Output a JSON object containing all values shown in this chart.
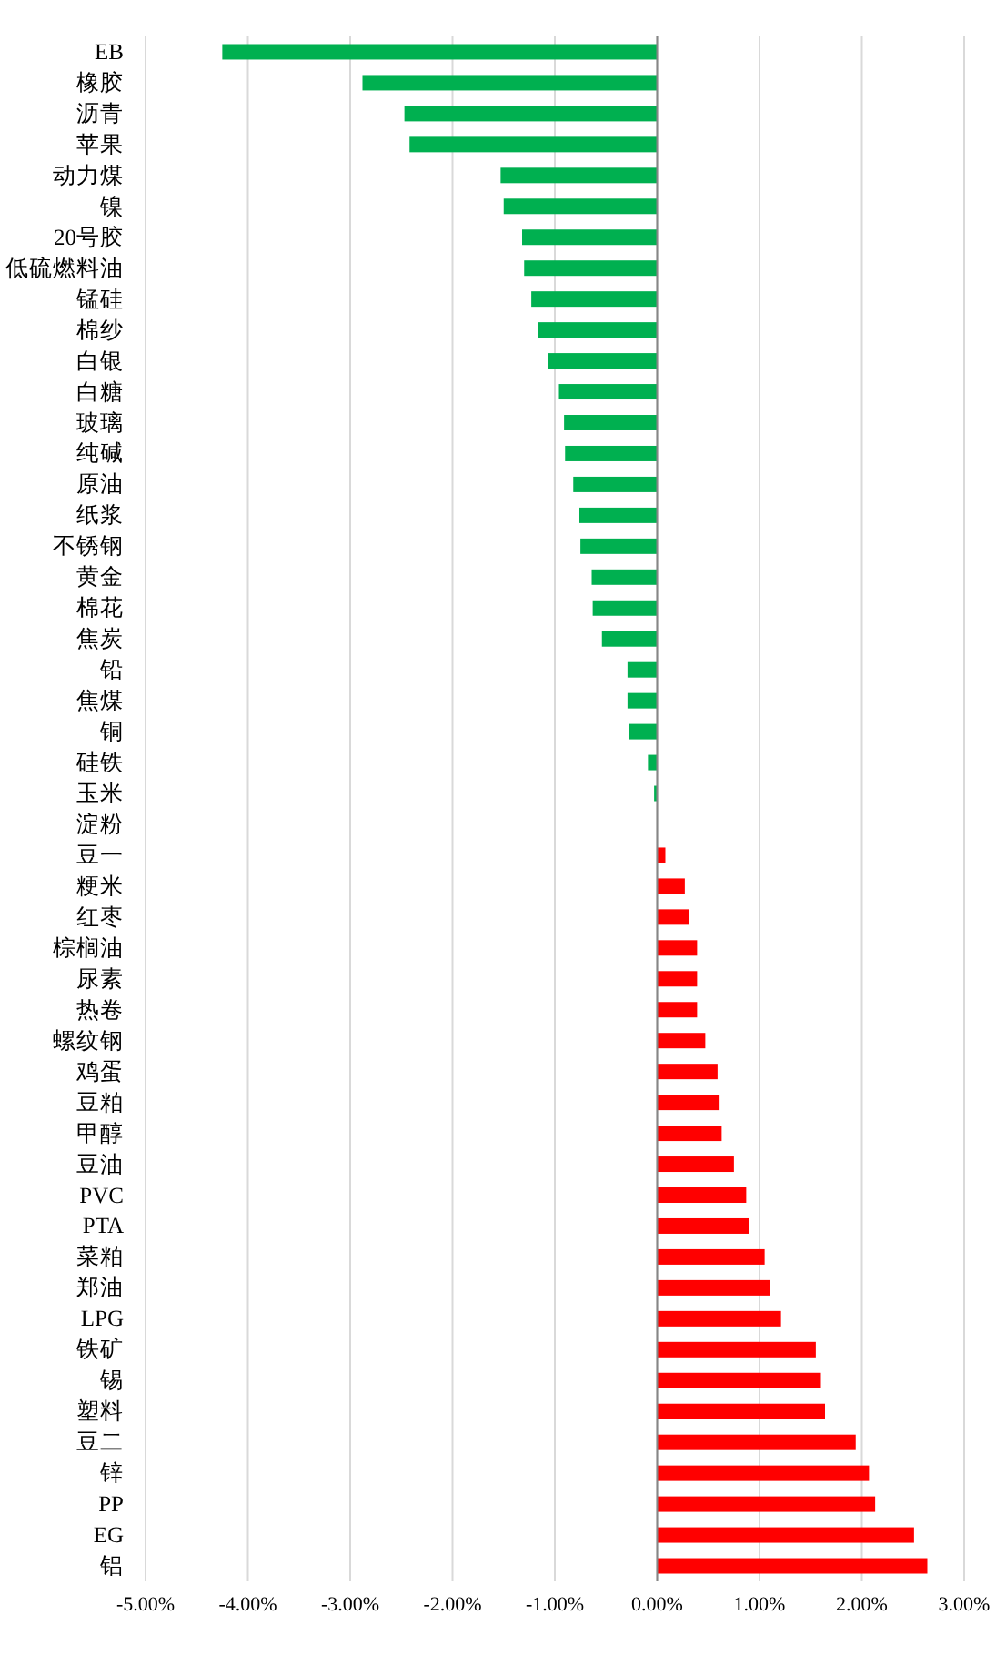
{
  "chart_data": {
    "type": "bar",
    "orientation": "horizontal",
    "categories": [
      "EB",
      "橡胶",
      "沥青",
      "苹果",
      "动力煤",
      "镍",
      "20号胶",
      "低硫燃料油",
      "锰硅",
      "棉纱",
      "白银",
      "白糖",
      "玻璃",
      "纯碱",
      "原油",
      "纸浆",
      "不锈钢",
      "黄金",
      "棉花",
      "焦炭",
      "铅",
      "焦煤",
      "铜",
      "硅铁",
      "玉米",
      "淀粉",
      "豆一",
      "粳米",
      "红枣",
      "棕榈油",
      "尿素",
      "热卷",
      "螺纹钢",
      "鸡蛋",
      "豆粕",
      "甲醇",
      "豆油",
      "PVC",
      "PTA",
      "菜粕",
      "郑油",
      "LPG",
      "铁矿",
      "锡",
      "塑料",
      "豆二",
      "锌",
      "PP",
      "EG",
      "铝"
    ],
    "values": [
      -4.25,
      -2.88,
      -2.47,
      -2.42,
      -1.53,
      -1.5,
      -1.32,
      -1.3,
      -1.23,
      -1.16,
      -1.07,
      -0.96,
      -0.91,
      -0.9,
      -0.82,
      -0.76,
      -0.75,
      -0.64,
      -0.63,
      -0.54,
      -0.29,
      -0.29,
      -0.28,
      -0.09,
      -0.03,
      0,
      0.08,
      0.27,
      0.31,
      0.39,
      0.39,
      0.39,
      0.47,
      0.59,
      0.61,
      0.63,
      0.75,
      0.87,
      0.9,
      1.05,
      1.1,
      1.21,
      1.55,
      1.6,
      1.64,
      1.94,
      2.07,
      2.13,
      2.51,
      2.64
    ],
    "colors": [
      "#00b050",
      "#00b050",
      "#00b050",
      "#00b050",
      "#00b050",
      "#00b050",
      "#00b050",
      "#00b050",
      "#00b050",
      "#00b050",
      "#00b050",
      "#00b050",
      "#00b050",
      "#00b050",
      "#00b050",
      "#00b050",
      "#00b050",
      "#00b050",
      "#00b050",
      "#00b050",
      "#00b050",
      "#00b050",
      "#00b050",
      "#00b050",
      "#00b050",
      "#00b050",
      "#ff0000",
      "#ff0000",
      "#ff0000",
      "#ff0000",
      "#ff0000",
      "#ff0000",
      "#ff0000",
      "#ff0000",
      "#ff0000",
      "#ff0000",
      "#ff0000",
      "#ff0000",
      "#ff0000",
      "#ff0000",
      "#ff0000",
      "#ff0000",
      "#ff0000",
      "#ff0000",
      "#ff0000",
      "#ff0000",
      "#ff0000",
      "#ff0000",
      "#ff0000",
      "#ff0000"
    ],
    "xlim": [
      -5,
      3
    ],
    "xticks": [
      {
        "value": -5,
        "label": "-5.00%"
      },
      {
        "value": -4,
        "label": "-4.00%"
      },
      {
        "value": -3,
        "label": "-3.00%"
      },
      {
        "value": -2,
        "label": "-2.00%"
      },
      {
        "value": -1,
        "label": "-1.00%"
      },
      {
        "value": 0,
        "label": "0.00%"
      },
      {
        "value": 1,
        "label": "1.00%"
      },
      {
        "value": 2,
        "label": "2.00%"
      },
      {
        "value": 3,
        "label": "3.00%"
      }
    ],
    "grid": "x"
  }
}
